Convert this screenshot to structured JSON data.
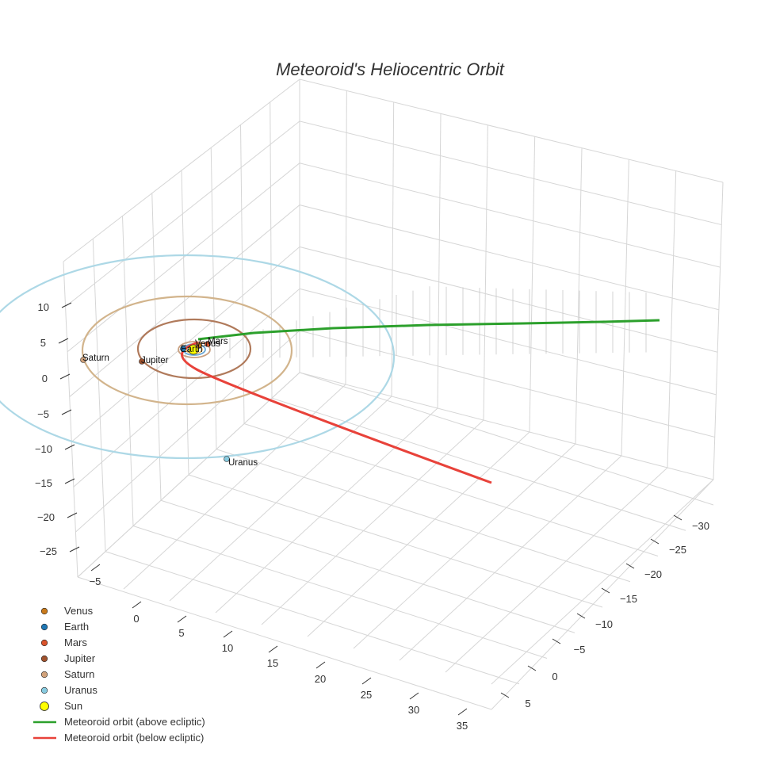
{
  "chart_data": {
    "type": "scatter3d",
    "title": "Meteoroid's Heliocentric Orbit",
    "axes": {
      "x": {
        "range": [
          -30,
          5
        ],
        "ticks": [
          "−30",
          "−25",
          "−20",
          "−15",
          "−10",
          "−5",
          "0",
          "5"
        ],
        "label": ""
      },
      "y": {
        "range": [
          -5,
          35
        ],
        "ticks": [
          "−5",
          "0",
          "5",
          "10",
          "15",
          "20",
          "25",
          "30",
          "35"
        ],
        "label": ""
      },
      "z": {
        "range": [
          -25,
          10
        ],
        "ticks": [
          "10",
          "5",
          "0",
          "−5",
          "−10",
          "−15",
          "−20",
          "−25"
        ],
        "label": ""
      }
    },
    "planets": [
      {
        "name": "Venus",
        "label": "Venus",
        "orbit_radius_au": 0.72,
        "color": "#c97a1b"
      },
      {
        "name": "Earth",
        "label": "Earth",
        "orbit_radius_au": 1.0,
        "color": "#1f77b4"
      },
      {
        "name": "Mars",
        "label": "Mars",
        "orbit_radius_au": 1.52,
        "color": "#d9532c"
      },
      {
        "name": "Jupiter",
        "label": "Jupiter",
        "orbit_radius_au": 5.2,
        "color": "#a0522d"
      },
      {
        "name": "Saturn",
        "label": "Saturn",
        "orbit_radius_au": 9.58,
        "color": "#d2a27a"
      },
      {
        "name": "Uranus",
        "label": "Uranus",
        "orbit_radius_au": 19.2,
        "color": "#87cbe0"
      }
    ],
    "sun": {
      "name": "Sun",
      "color": "#ffff00"
    },
    "series": [
      {
        "name": "Meteoroid orbit (above ecliptic)",
        "color": "#2ca02c"
      },
      {
        "name": "Meteoroid orbit (below ecliptic)",
        "color": "#e8423a"
      }
    ],
    "legend_position": "bottom-left"
  },
  "legend": [
    {
      "label": "Venus",
      "symbol": "marker",
      "color": "#c97a1b"
    },
    {
      "label": "Earth",
      "symbol": "marker",
      "color": "#1f77b4"
    },
    {
      "label": "Mars",
      "symbol": "marker",
      "color": "#d9532c"
    },
    {
      "label": "Jupiter",
      "symbol": "marker",
      "color": "#a0522d"
    },
    {
      "label": "Saturn",
      "symbol": "marker",
      "color": "#d2a27a"
    },
    {
      "label": "Uranus",
      "symbol": "marker",
      "color": "#87cbe0"
    },
    {
      "label": "Sun",
      "symbol": "sun",
      "color": "#ffff00"
    },
    {
      "label": "Meteoroid orbit (above ecliptic)",
      "symbol": "line",
      "color": "#2ca02c"
    },
    {
      "label": "Meteoroid orbit (below ecliptic)",
      "symbol": "line",
      "color": "#e8423a"
    }
  ]
}
